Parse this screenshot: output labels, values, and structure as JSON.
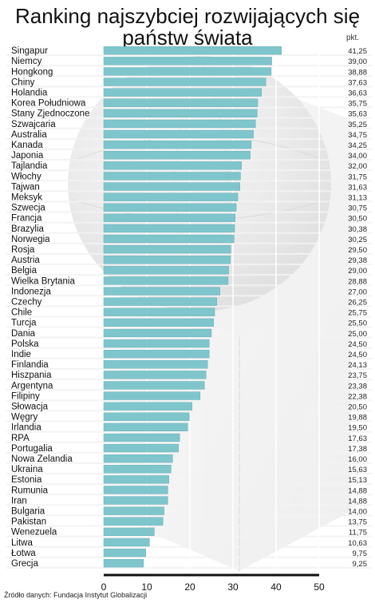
{
  "chart_data": {
    "type": "bar",
    "orientation": "horizontal",
    "title_line1": "Ranking najszybciej rozwijających się",
    "title_line2": "państw świata",
    "unit": "pkt.",
    "source": "Źródło danych: Fundacja Instytut Globalizacji",
    "xlim": [
      0,
      50
    ],
    "xticks": [
      "0",
      "10",
      "20",
      "30",
      "40",
      "50"
    ],
    "grid": true,
    "bar_color": "#7fc5cc",
    "categories": [
      "Singapur",
      "Niemcy",
      "Hongkong",
      "Chiny",
      "Holandia",
      "Korea Południowa",
      "Stany Zjednoczone",
      "Szwajcaria",
      "Australia",
      "Kanada",
      "Japonia",
      "Tajlandia",
      "Włochy",
      "Tajwan",
      "Meksyk",
      "Szwecja",
      "Francja",
      "Brazylia",
      "Norwegia",
      "Rosja",
      "Austria",
      "Belgia",
      "Wielka Brytania",
      "Indonezja",
      "Czechy",
      "Chile",
      "Turcja",
      "Dania",
      "Polska",
      "Indie",
      "Finlandia",
      "Hiszpania",
      "Argentyna",
      "Filipiny",
      "Słowacja",
      "Węgry",
      "Irlandia",
      "RPA",
      "Portugalia",
      "Nowa Zelandia",
      "Ukraina",
      "Estonia",
      "Rumunia",
      "Iran",
      "Bulgaria",
      "Pakistan",
      "Wenezuela",
      "Litwa",
      "Łotwa",
      "Grecja"
    ],
    "values": [
      41.25,
      39.0,
      38.88,
      37.63,
      36.63,
      35.75,
      35.63,
      35.25,
      34.75,
      34.25,
      34.0,
      32.0,
      31.75,
      31.63,
      31.13,
      30.75,
      30.5,
      30.38,
      30.25,
      29.5,
      29.38,
      29.0,
      28.88,
      27.0,
      26.25,
      25.75,
      25.5,
      25.0,
      24.5,
      24.5,
      24.13,
      23.75,
      23.38,
      22.38,
      20.5,
      19.88,
      19.5,
      17.63,
      17.38,
      16.0,
      15.63,
      15.13,
      14.88,
      14.88,
      14.0,
      13.75,
      11.75,
      10.63,
      9.75,
      9.25
    ],
    "value_labels": [
      "41,25",
      "39,00",
      "38,88",
      "37,63",
      "36,63",
      "35,75",
      "35,63",
      "35,25",
      "34,75",
      "34,25",
      "34,00",
      "32,00",
      "31,75",
      "31,63",
      "31,13",
      "30,75",
      "30,50",
      "30,38",
      "30,25",
      "29,50",
      "29,38",
      "29,00",
      "28,88",
      "27,00",
      "26,25",
      "25,75",
      "25,50",
      "25,00",
      "24,50",
      "24,50",
      "24,13",
      "23,75",
      "23,38",
      "22,38",
      "20,50",
      "19,88",
      "19,50",
      "17,63",
      "17,38",
      "16,00",
      "15,63",
      "15,13",
      "14,88",
      "14,88",
      "14,00",
      "13,75",
      "11,75",
      "10,63",
      "9,75",
      "9,25"
    ]
  }
}
